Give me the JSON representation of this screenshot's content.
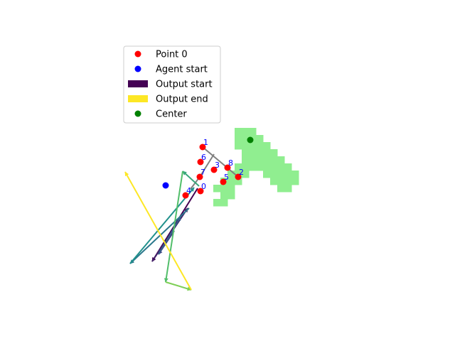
{
  "chart_data": {
    "type": "scatter",
    "title": "",
    "xlabel": "",
    "ylabel": "",
    "axes_visible": false,
    "grid": false,
    "legend_position": "upper-left",
    "colors": {
      "point0": "#ff0000",
      "agent_start": "#0000ff",
      "output_start": "#440154",
      "output_end": "#fde725",
      "center": "#008000",
      "region": "#90ee90",
      "skeleton": "#808080",
      "point_labels": "#0000ff"
    },
    "legend": [
      {
        "label": "Point 0",
        "kind": "dot",
        "color": "#ff0000"
      },
      {
        "label": "Agent start",
        "kind": "dot",
        "color": "#0000ff"
      },
      {
        "label": "Output start",
        "kind": "bar",
        "color": "#440154"
      },
      {
        "label": "Output end",
        "kind": "bar",
        "color": "#fde725"
      },
      {
        "label": "Center",
        "kind": "dot",
        "color": "#008000"
      }
    ],
    "region_shape": "T",
    "region_cells": [
      [
        33,
        18
      ],
      [
        34,
        18
      ],
      [
        35,
        18
      ],
      [
        33,
        19
      ],
      [
        34,
        19
      ],
      [
        35,
        19
      ],
      [
        36,
        19
      ],
      [
        33,
        20
      ],
      [
        34,
        20
      ],
      [
        35,
        20
      ],
      [
        36,
        20
      ],
      [
        37,
        20
      ],
      [
        34,
        21
      ],
      [
        35,
        21
      ],
      [
        36,
        21
      ],
      [
        37,
        21
      ],
      [
        38,
        21
      ],
      [
        35,
        22
      ],
      [
        36,
        22
      ],
      [
        37,
        22
      ],
      [
        38,
        22
      ],
      [
        39,
        22
      ],
      [
        36,
        23
      ],
      [
        37,
        23
      ],
      [
        38,
        23
      ],
      [
        39,
        23
      ],
      [
        40,
        23
      ],
      [
        37,
        24
      ],
      [
        38,
        24
      ],
      [
        39,
        24
      ],
      [
        40,
        24
      ],
      [
        41,
        24
      ],
      [
        38,
        25
      ],
      [
        39,
        25
      ],
      [
        40,
        25
      ],
      [
        41,
        25
      ],
      [
        39,
        26
      ],
      [
        40,
        26
      ],
      [
        34,
        22
      ],
      [
        35,
        22
      ],
      [
        33,
        23
      ],
      [
        34,
        23
      ],
      [
        35,
        23
      ],
      [
        32,
        24
      ],
      [
        33,
        24
      ],
      [
        34,
        24
      ],
      [
        31,
        25
      ],
      [
        32,
        25
      ],
      [
        33,
        25
      ],
      [
        30,
        26
      ],
      [
        31,
        26
      ],
      [
        32,
        26
      ],
      [
        31,
        27
      ],
      [
        32,
        27
      ],
      [
        30,
        28
      ],
      [
        31,
        28
      ]
    ],
    "center": {
      "x": 35.2,
      "y": 19.7
    },
    "agent_start": {
      "x": 23.3,
      "y": 26.1
    },
    "points": [
      {
        "id": "0",
        "x": 28.2,
        "y": 26.9
      },
      {
        "id": "1",
        "x": 28.5,
        "y": 20.7
      },
      {
        "id": "2",
        "x": 33.5,
        "y": 24.9
      },
      {
        "id": "3",
        "x": 30.1,
        "y": 23.9
      },
      {
        "id": "4",
        "x": 26.1,
        "y": 27.5
      },
      {
        "id": "5",
        "x": 31.4,
        "y": 25.6
      },
      {
        "id": "6",
        "x": 28.2,
        "y": 22.8
      },
      {
        "id": "7",
        "x": 28.1,
        "y": 24.9
      },
      {
        "id": "8",
        "x": 32.0,
        "y": 23.6
      }
    ],
    "skeleton_edges": [
      [
        [
          28.5,
          20.7
        ],
        [
          33.5,
          24.9
        ]
      ],
      [
        [
          30.1,
          21.7
        ],
        [
          28.1,
          24.9
        ]
      ],
      [
        [
          28.1,
          24.9
        ],
        [
          26.8,
          26.6
        ]
      ]
    ],
    "arrows": [
      {
        "from": [
          27.8,
          26.5
        ],
        "to": [
          21.4,
          36.8
        ],
        "t": 0.0
      },
      {
        "from": [
          21.4,
          36.8
        ],
        "to": [
          26.4,
          29.3
        ],
        "t": 0.1
      },
      {
        "from": [
          24.5,
          32.5
        ],
        "to": [
          22.3,
          35.8
        ],
        "t": 0.2
      },
      {
        "from": [
          22.3,
          35.8
        ],
        "to": [
          25.4,
          30.5
        ],
        "t": 0.3
      },
      {
        "from": [
          26.6,
          29.3
        ],
        "to": [
          18.3,
          37.1
        ],
        "t": 0.4
      },
      {
        "from": [
          18.3,
          37.1
        ],
        "to": [
          27.3,
          26.4
        ],
        "t": 0.5
      },
      {
        "from": [
          28.0,
          26.2
        ],
        "to": [
          25.7,
          24.1
        ],
        "t": 0.6
      },
      {
        "from": [
          25.7,
          24.1
        ],
        "to": [
          23.3,
          39.7
        ],
        "t": 0.7
      },
      {
        "from": [
          23.3,
          39.7
        ],
        "to": [
          26.9,
          40.8
        ],
        "t": 0.8
      },
      {
        "from": [
          26.9,
          40.8
        ],
        "to": [
          17.6,
          24.2
        ],
        "t": 1.0
      }
    ],
    "xlim": [
      0,
      64
    ],
    "ylim": [
      48,
      0
    ]
  }
}
